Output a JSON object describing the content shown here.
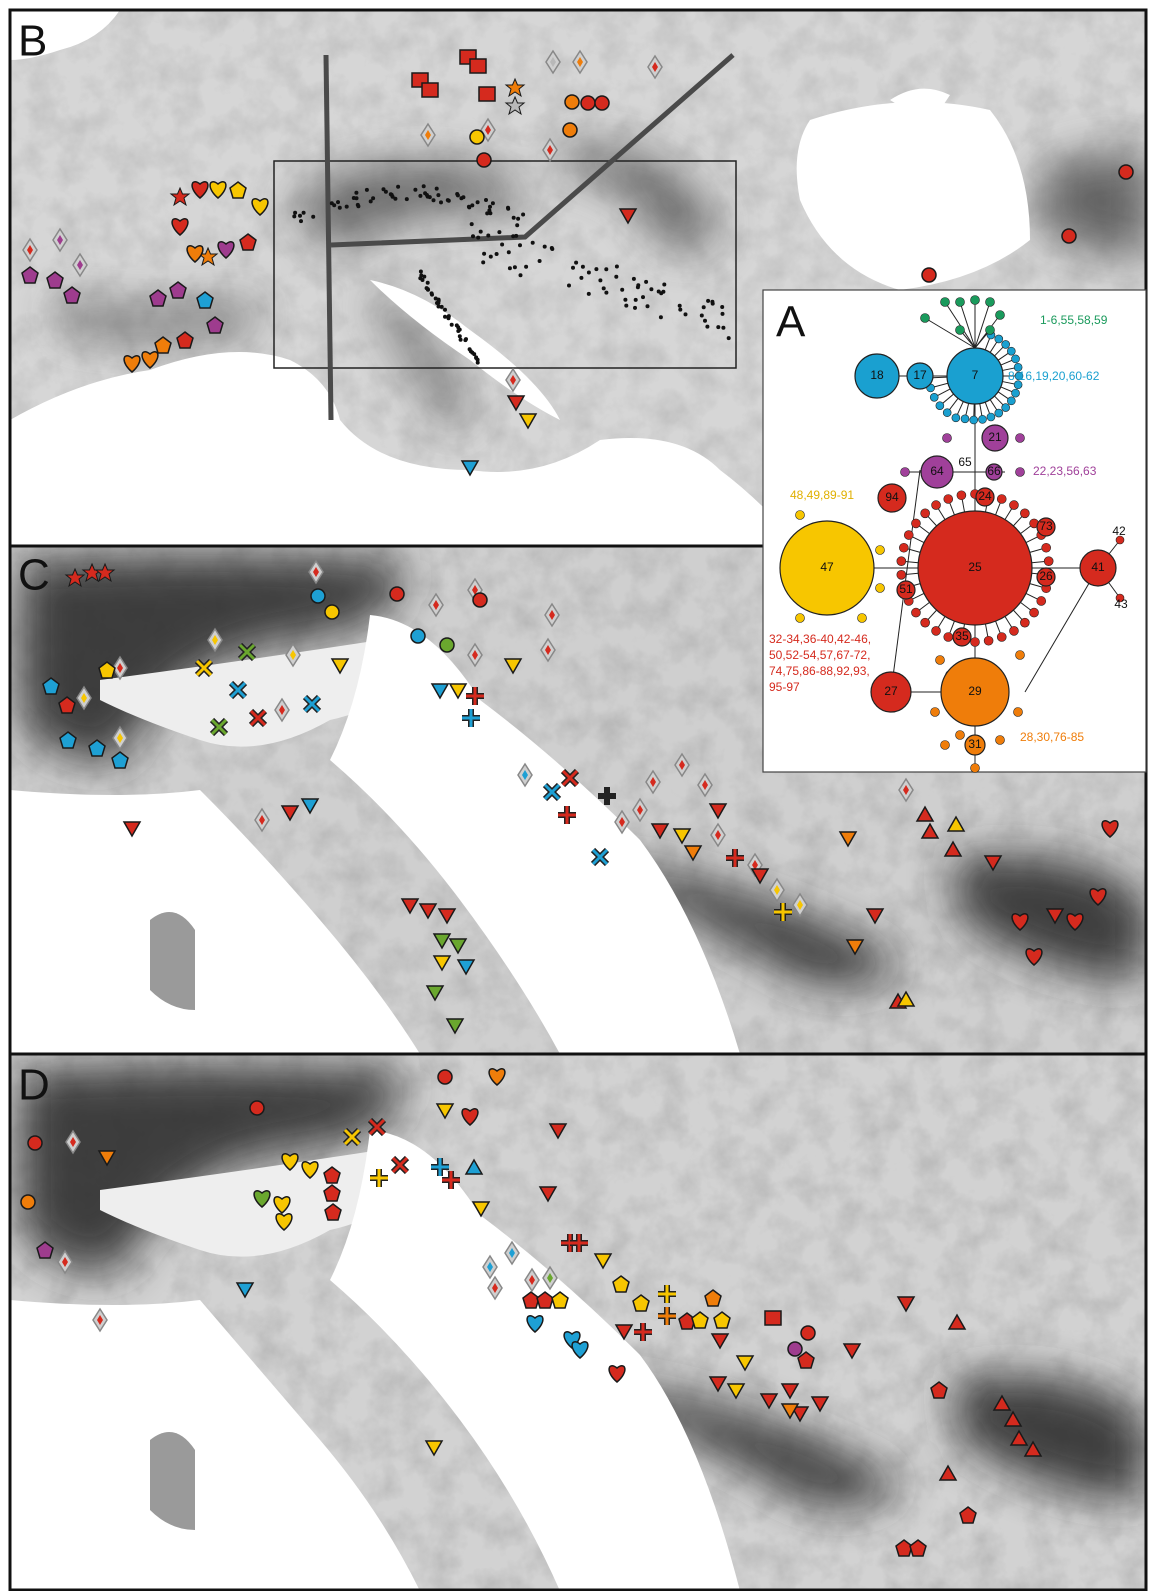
{
  "panel_labels": [
    "B",
    "C",
    "D",
    "A"
  ],
  "network": {
    "nodes": [
      "18",
      "17",
      "7",
      "21",
      "64",
      "65",
      "66",
      "94",
      "24",
      "25",
      "47",
      "73",
      "26",
      "41",
      "42",
      "43",
      "51",
      "35",
      "27",
      "29",
      "31"
    ],
    "groups": [
      [
        "1-6,55,58,59"
      ],
      [
        "8-16,19,20,60-62"
      ],
      [
        "22,23,56,63"
      ],
      [
        "48,49,89-91"
      ],
      [
        "32-34,36-40,42-46,",
        "50,52-54,57,67-72,",
        "74,75,86-88,92,93,",
        "95-97"
      ],
      [
        "28,30,76-85"
      ]
    ]
  }
}
